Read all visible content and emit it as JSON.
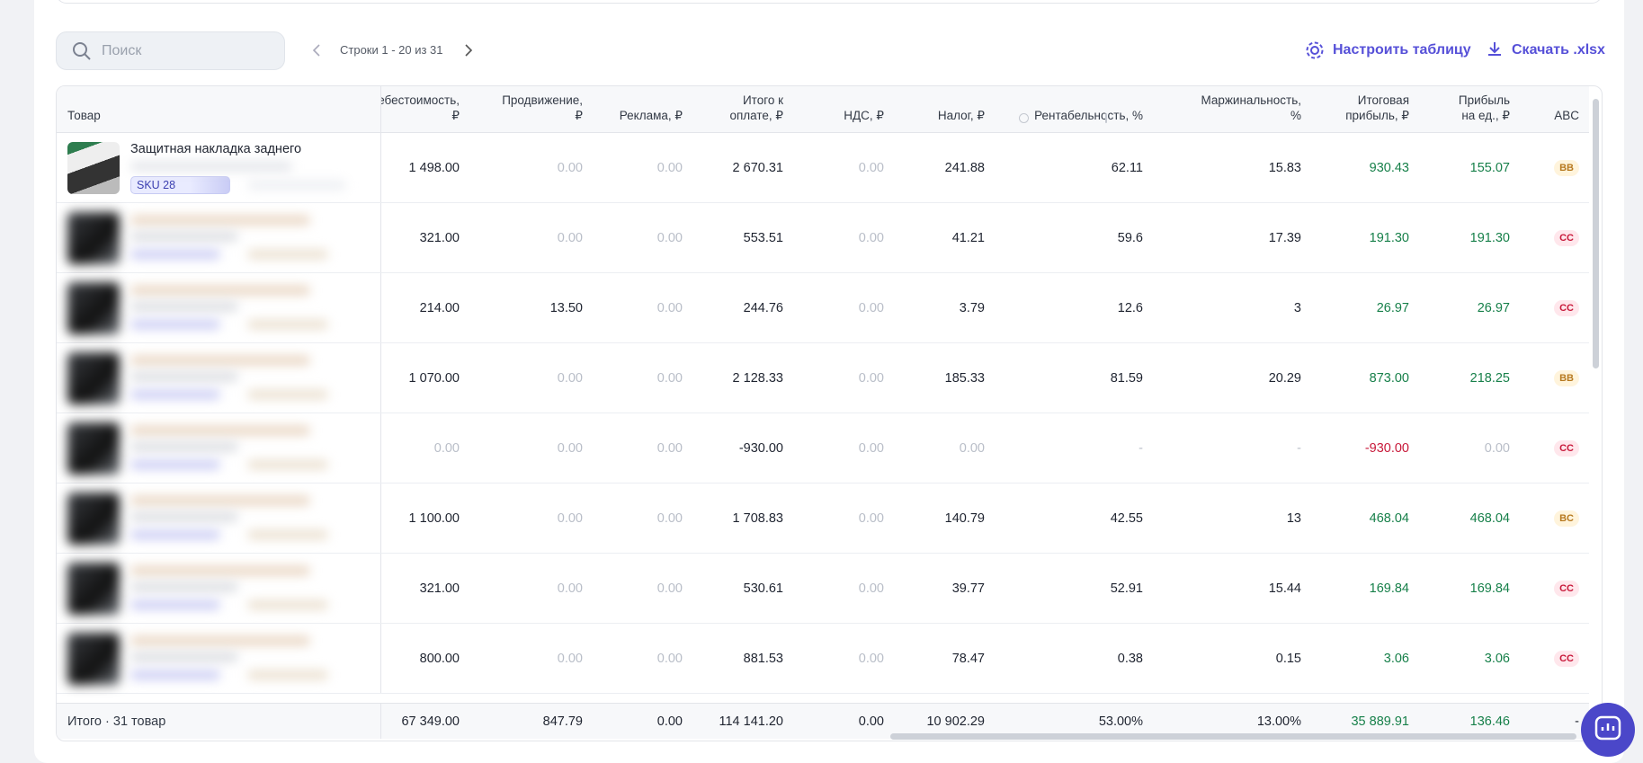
{
  "toolbar": {
    "search_placeholder": "Поиск",
    "pagination": "Строки 1 - 20 из 31",
    "settings_button": "Настроить таблицу",
    "download_button": "Скачать .xlsx"
  },
  "table": {
    "columns": [
      "Товар",
      "Себестоимость, ₽",
      "Продвижение, ₽",
      "Реклама, ₽",
      "Итого к оплате, ₽",
      "НДС, ₽",
      "Налог, ₽",
      "Рентабельность, %",
      "Маржинальность, %",
      "Итоговая прибыль, ₽",
      "Прибыль на ед., ₽",
      "ABC"
    ],
    "rows": [
      {
        "product": {
          "name": "Защитная накладка заднего",
          "sku": "SKU 28"
        },
        "cells": [
          "1 498.00",
          "0.00",
          "0.00",
          "2 670.31",
          "0.00",
          "241.88",
          "62.11",
          "15.83",
          "930.43",
          "155.07",
          "BB"
        ]
      },
      {
        "cells": [
          "321.00",
          "0.00",
          "0.00",
          "553.51",
          "0.00",
          "41.21",
          "59.6",
          "17.39",
          "191.30",
          "191.30",
          "CC"
        ]
      },
      {
        "cells": [
          "214.00",
          "13.50",
          "0.00",
          "244.76",
          "0.00",
          "3.79",
          "12.6",
          "3",
          "26.97",
          "26.97",
          "CC"
        ]
      },
      {
        "cells": [
          "1 070.00",
          "0.00",
          "0.00",
          "2 128.33",
          "0.00",
          "185.33",
          "81.59",
          "20.29",
          "873.00",
          "218.25",
          "BB"
        ]
      },
      {
        "cells": [
          "0.00",
          "0.00",
          "0.00",
          "-930.00",
          "0.00",
          "0.00",
          "-",
          "-",
          "-930.00",
          "0.00",
          "CC"
        ]
      },
      {
        "cells": [
          "1 100.00",
          "0.00",
          "0.00",
          "1 708.83",
          "0.00",
          "140.79",
          "42.55",
          "13",
          "468.04",
          "468.04",
          "BC"
        ]
      },
      {
        "cells": [
          "321.00",
          "0.00",
          "0.00",
          "530.61",
          "0.00",
          "39.77",
          "52.91",
          "15.44",
          "169.84",
          "169.84",
          "CC"
        ]
      },
      {
        "cells": [
          "800.00",
          "0.00",
          "0.00",
          "881.53",
          "0.00",
          "78.47",
          "0.38",
          "0.15",
          "3.06",
          "3.06",
          "CC"
        ]
      }
    ],
    "footer": {
      "label": "Итого · 31 товар",
      "cells": [
        "67 349.00",
        "847.79",
        "0.00",
        "114 141.20",
        "0.00",
        "10 902.29",
        "53.00%",
        "13.00%",
        "35 889.91",
        "136.46",
        "-"
      ]
    }
  }
}
